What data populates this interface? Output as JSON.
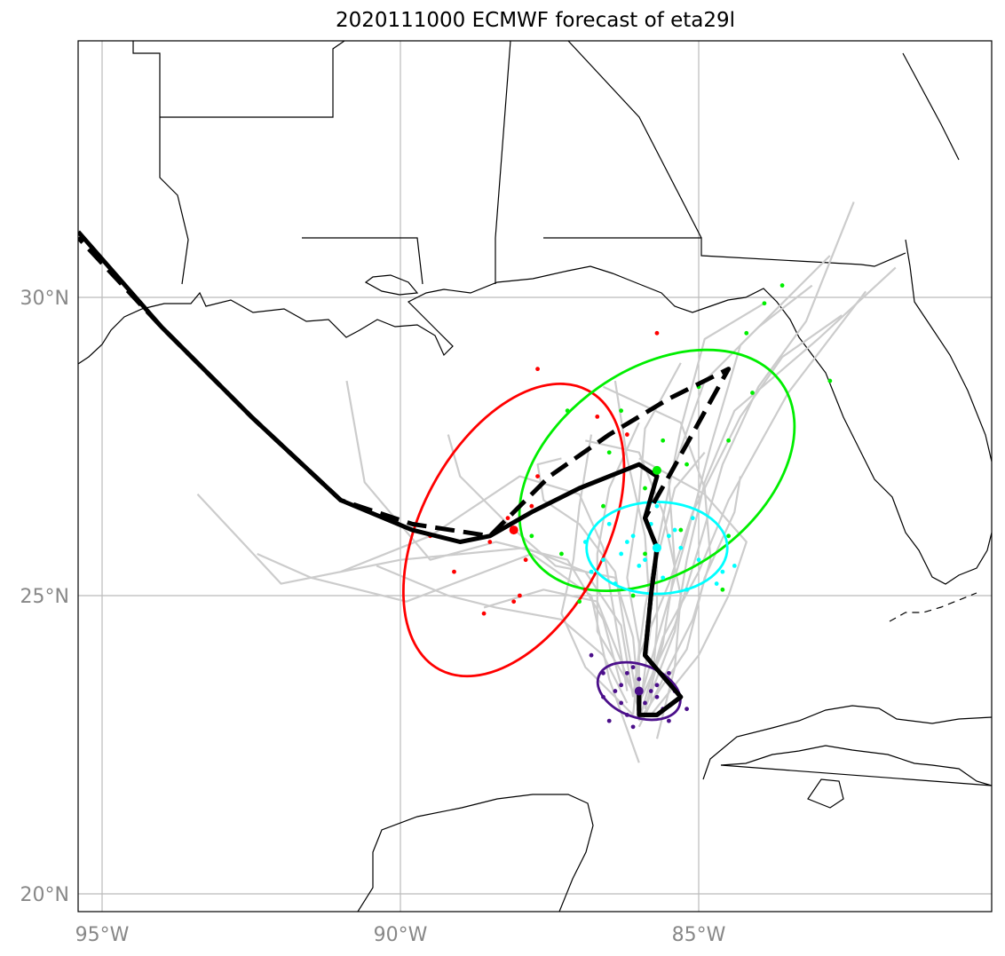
{
  "title": "2020111000 ECMWF forecast of eta29l",
  "axes": {
    "lon_ticks": [
      {
        "value": -95,
        "label": "95°W"
      },
      {
        "value": -90,
        "label": "90°W"
      },
      {
        "value": -85,
        "label": "85°W"
      }
    ],
    "lat_ticks": [
      {
        "value": 30,
        "label": "30°N"
      },
      {
        "value": 25,
        "label": "25°N"
      },
      {
        "value": 20,
        "label": "20°N"
      }
    ],
    "grid": true,
    "extent": {
      "lon_min": -95.4,
      "lon_max": -80.1,
      "lat_min": 19.7,
      "lat_max": 34.3
    }
  },
  "colors": {
    "coast": "#000000",
    "grid": "#bbbbbb",
    "ensemble": "#cccccc",
    "mean_track": "#000000",
    "ellipse_day1": "#4b0f8a",
    "ellipse_day2": "#00ffff",
    "ellipse_day3": "#00ee00",
    "ellipse_day4": "#ff0000"
  },
  "tracks": {
    "ensemble_mean": [
      [
        -86.0,
        23.4
      ],
      [
        -86.0,
        23.0
      ],
      [
        -85.7,
        23.0
      ],
      [
        -85.3,
        23.3
      ],
      [
        -85.9,
        24.0
      ],
      [
        -85.8,
        25.0
      ],
      [
        -85.7,
        25.8
      ],
      [
        -85.9,
        26.3
      ],
      [
        -85.7,
        27.0
      ],
      [
        -86.0,
        27.2
      ],
      [
        -87.0,
        26.8
      ],
      [
        -87.8,
        26.4
      ],
      [
        -88.5,
        26.0
      ],
      [
        -89.0,
        25.9
      ],
      [
        -89.8,
        26.1
      ],
      [
        -91.0,
        26.6
      ],
      [
        -92.5,
        28.0
      ],
      [
        -94.0,
        29.5
      ],
      [
        -95.4,
        31.1
      ]
    ],
    "deterministic": [
      [
        -86.0,
        23.4
      ],
      [
        -86.0,
        23.0
      ],
      [
        -85.7,
        23.0
      ],
      [
        -85.3,
        23.3
      ],
      [
        -85.9,
        24.0
      ],
      [
        -85.8,
        25.0
      ],
      [
        -85.7,
        25.8
      ],
      [
        -85.9,
        26.3
      ],
      [
        -85.5,
        27.0
      ],
      [
        -85.0,
        27.9
      ],
      [
        -84.5,
        28.8
      ],
      [
        -85.5,
        28.3
      ],
      [
        -86.5,
        27.7
      ],
      [
        -87.5,
        27.0
      ],
      [
        -88.5,
        26.0
      ],
      [
        -89.8,
        26.2
      ],
      [
        -91.0,
        26.6
      ],
      [
        -92.5,
        28.0
      ],
      [
        -94.0,
        29.5
      ],
      [
        -95.4,
        31.0
      ]
    ],
    "ensemble_members": [
      [
        [
          -86.0,
          23.2
        ],
        [
          -85.4,
          24.5
        ],
        [
          -85.0,
          25.8
        ],
        [
          -84.6,
          27.2
        ],
        [
          -84.0,
          28.5
        ],
        [
          -83.2,
          29.6
        ],
        [
          -82.4,
          31.6
        ]
      ],
      [
        [
          -86.0,
          23.2
        ],
        [
          -85.6,
          24.6
        ],
        [
          -85.2,
          26.0
        ],
        [
          -84.8,
          27.5
        ],
        [
          -84.3,
          29.2
        ],
        [
          -83.3,
          30.2
        ],
        [
          -82.8,
          30.7
        ]
      ],
      [
        [
          -86.1,
          23.3
        ],
        [
          -85.9,
          24.8
        ],
        [
          -85.6,
          26.3
        ],
        [
          -85.3,
          27.8
        ],
        [
          -84.9,
          29.3
        ],
        [
          -83.9,
          29.9
        ]
      ],
      [
        [
          -86.0,
          23.0
        ],
        [
          -85.8,
          24.5
        ],
        [
          -85.9,
          26.0
        ],
        [
          -86.2,
          27.3
        ],
        [
          -86.4,
          28.6
        ]
      ],
      [
        [
          -86.2,
          23.4
        ],
        [
          -86.4,
          24.6
        ],
        [
          -86.6,
          25.8
        ],
        [
          -87.0,
          26.7
        ],
        [
          -88.0,
          27.0
        ],
        [
          -89.5,
          26.0
        ],
        [
          -91.0,
          25.4
        ]
      ],
      [
        [
          -86.3,
          23.5
        ],
        [
          -86.6,
          24.6
        ],
        [
          -87.2,
          25.6
        ],
        [
          -88.4,
          25.9
        ],
        [
          -89.5,
          25.6
        ],
        [
          -90.6,
          26.9
        ],
        [
          -90.9,
          28.6
        ]
      ],
      [
        [
          -86.1,
          23.3
        ],
        [
          -86.3,
          24.5
        ],
        [
          -86.9,
          25.4
        ],
        [
          -87.9,
          25.8
        ],
        [
          -90.0,
          25.6
        ],
        [
          -92.0,
          25.2
        ],
        [
          -93.4,
          26.7
        ]
      ],
      [
        [
          -85.9,
          23.1
        ],
        [
          -85.4,
          24.4
        ],
        [
          -85.2,
          25.6
        ],
        [
          -84.9,
          26.9
        ],
        [
          -84.4,
          28.1
        ],
        [
          -83.0,
          29.3
        ],
        [
          -81.7,
          30.5
        ]
      ],
      [
        [
          -86.0,
          22.8
        ],
        [
          -85.6,
          23.6
        ],
        [
          -85.1,
          24.6
        ],
        [
          -84.8,
          25.6
        ],
        [
          -84.9,
          26.8
        ],
        [
          -85.3,
          27.9
        ],
        [
          -86.6,
          28.5
        ]
      ],
      [
        [
          -86.1,
          23.0
        ],
        [
          -86.0,
          24.0
        ],
        [
          -85.5,
          25.2
        ],
        [
          -85.1,
          26.4
        ],
        [
          -84.3,
          28.0
        ],
        [
          -83.6,
          29.0
        ],
        [
          -82.6,
          29.7
        ]
      ],
      [
        [
          -86.0,
          23.1
        ],
        [
          -86.2,
          24.2
        ],
        [
          -86.4,
          25.4
        ],
        [
          -87.0,
          26.2
        ],
        [
          -87.6,
          26.6
        ],
        [
          -87.7,
          27.2
        ],
        [
          -87.3,
          27.3
        ]
      ],
      [
        [
          -85.7,
          22.6
        ],
        [
          -85.4,
          23.8
        ],
        [
          -85.3,
          25.0
        ],
        [
          -85.6,
          26.4
        ],
        [
          -86.0,
          27.4
        ],
        [
          -86.9,
          27.6
        ]
      ],
      [
        [
          -86.0,
          22.2
        ],
        [
          -86.5,
          23.6
        ],
        [
          -86.8,
          25.0
        ],
        [
          -87.8,
          25.7
        ],
        [
          -89.9,
          24.9
        ],
        [
          -91.5,
          25.3
        ],
        [
          -92.4,
          25.7
        ]
      ],
      [
        [
          -86.0,
          22.9
        ],
        [
          -85.2,
          24.1
        ],
        [
          -84.9,
          25.3
        ],
        [
          -84.4,
          26.4
        ],
        [
          -84.3,
          27.0
        ]
      ],
      [
        [
          -86.2,
          23.2
        ],
        [
          -86.6,
          24.0
        ],
        [
          -87.3,
          24.6
        ],
        [
          -88.4,
          24.8
        ],
        [
          -89.2,
          25.0
        ],
        [
          -90.4,
          25.5
        ]
      ],
      [
        [
          -85.9,
          23.1
        ],
        [
          -85.6,
          24.2
        ],
        [
          -85.4,
          25.5
        ],
        [
          -85.5,
          26.9
        ],
        [
          -84.9,
          28.6
        ],
        [
          -84.0,
          29.5
        ],
        [
          -83.1,
          30.2
        ]
      ],
      [
        [
          -85.8,
          23.0
        ],
        [
          -85.0,
          24.0
        ],
        [
          -84.5,
          25.0
        ],
        [
          -84.2,
          25.9
        ],
        [
          -84.9,
          26.7
        ],
        [
          -86.0,
          27.3
        ]
      ],
      [
        [
          -86.1,
          23.0
        ],
        [
          -86.9,
          23.8
        ],
        [
          -87.3,
          24.7
        ],
        [
          -87.1,
          25.6
        ],
        [
          -87.0,
          26.5
        ],
        [
          -86.8,
          27.7
        ]
      ],
      [
        [
          -86.0,
          23.1
        ],
        [
          -86.3,
          23.9
        ],
        [
          -86.7,
          24.9
        ],
        [
          -87.6,
          25.1
        ],
        [
          -88.6,
          24.8
        ]
      ],
      [
        [
          -86.0,
          23.3
        ],
        [
          -86.0,
          24.2
        ],
        [
          -86.2,
          25.3
        ],
        [
          -86.0,
          26.6
        ],
        [
          -85.9,
          27.8
        ],
        [
          -85.3,
          28.9
        ]
      ],
      [
        [
          -85.8,
          23.2
        ],
        [
          -85.7,
          24.5
        ],
        [
          -85.7,
          25.6
        ],
        [
          -85.4,
          26.8
        ],
        [
          -84.9,
          27.4
        ]
      ],
      [
        [
          -86.0,
          23.2
        ],
        [
          -86.1,
          24.3
        ],
        [
          -86.4,
          25.3
        ],
        [
          -87.4,
          25.5
        ],
        [
          -88.2,
          26.2
        ],
        [
          -89.0,
          27.0
        ],
        [
          -89.2,
          27.7
        ]
      ],
      [
        [
          -86.1,
          23.4
        ],
        [
          -86.7,
          24.4
        ],
        [
          -86.7,
          25.7
        ],
        [
          -86.5,
          26.8
        ],
        [
          -86.0,
          27.9
        ]
      ],
      [
        [
          -86.0,
          22.9
        ],
        [
          -85.6,
          24.3
        ],
        [
          -85.0,
          25.4
        ],
        [
          -84.5,
          26.6
        ],
        [
          -83.5,
          28.4
        ],
        [
          -82.2,
          30.1
        ]
      ]
    ]
  },
  "positions": {
    "day1": [
      [
        -86.6,
        23.7
      ],
      [
        -86.1,
        23.8
      ],
      [
        -85.7,
        23.5
      ],
      [
        -86.3,
        23.2
      ],
      [
        -85.6,
        23.1
      ],
      [
        -86.2,
        23.0
      ],
      [
        -86.5,
        22.9
      ],
      [
        -85.4,
        23.4
      ],
      [
        -85.9,
        23.2
      ],
      [
        -86.3,
        23.5
      ],
      [
        -85.5,
        23.7
      ],
      [
        -86.4,
        23.4
      ],
      [
        -85.2,
        23.1
      ],
      [
        -86.1,
        22.8
      ],
      [
        -85.8,
        23.4
      ],
      [
        -86.6,
        23.3
      ],
      [
        -85.5,
        22.9
      ],
      [
        -86.0,
        23.6
      ],
      [
        -86.8,
        24.0
      ],
      [
        -85.9,
        23.0
      ],
      [
        -86.2,
        23.7
      ],
      [
        -85.7,
        23.3
      ]
    ],
    "day2": [
      [
        -85.9,
        25.6
      ],
      [
        -86.2,
        25.9
      ],
      [
        -85.4,
        26.1
      ],
      [
        -86.8,
        25.4
      ],
      [
        -85.7,
        26.5
      ],
      [
        -86.1,
        26.0
      ],
      [
        -85.3,
        25.8
      ],
      [
        -86.4,
        25.2
      ],
      [
        -85.0,
        25.6
      ],
      [
        -84.6,
        25.4
      ],
      [
        -85.6,
        25.3
      ],
      [
        -86.5,
        26.2
      ],
      [
        -85.2,
        25.1
      ],
      [
        -86.0,
        25.5
      ],
      [
        -84.4,
        25.5
      ],
      [
        -85.8,
        26.2
      ],
      [
        -86.3,
        25.7
      ],
      [
        -85.5,
        26.0
      ],
      [
        -84.7,
        25.2
      ],
      [
        -86.9,
        25.9
      ],
      [
        -85.1,
        26.3
      ],
      [
        -86.6,
        25.6
      ]
    ],
    "day3": [
      [
        -85.0,
        28.5
      ],
      [
        -85.6,
        27.6
      ],
      [
        -86.3,
        28.1
      ],
      [
        -85.9,
        26.8
      ],
      [
        -87.2,
        28.1
      ],
      [
        -86.5,
        27.4
      ],
      [
        -85.2,
        27.2
      ],
      [
        -86.6,
        26.5
      ],
      [
        -87.3,
        25.7
      ],
      [
        -84.5,
        26.0
      ],
      [
        -84.1,
        28.4
      ],
      [
        -83.9,
        29.9
      ],
      [
        -84.5,
        27.6
      ],
      [
        -85.9,
        25.7
      ],
      [
        -87.0,
        24.9
      ],
      [
        -86.1,
        25.0
      ],
      [
        -85.3,
        26.1
      ],
      [
        -87.8,
        26.0
      ],
      [
        -84.6,
        25.1
      ],
      [
        -84.2,
        29.4
      ],
      [
        -82.8,
        28.6
      ],
      [
        -83.6,
        30.2
      ]
    ],
    "day4": [
      [
        -87.7,
        28.8
      ],
      [
        -86.7,
        28.0
      ],
      [
        -87.7,
        27.0
      ],
      [
        -88.2,
        26.3
      ],
      [
        -88.5,
        25.9
      ],
      [
        -89.5,
        26.0
      ],
      [
        -87.9,
        25.6
      ],
      [
        -88.0,
        25.0
      ],
      [
        -89.1,
        25.4
      ],
      [
        -88.6,
        24.7
      ],
      [
        -86.9,
        25.1
      ],
      [
        -87.8,
        26.5
      ],
      [
        -85.7,
        29.4
      ],
      [
        -86.2,
        27.7
      ],
      [
        -88.1,
        24.9
      ]
    ]
  },
  "ellipses": {
    "day1": {
      "center": [
        -86.0,
        23.4
      ],
      "rx_deg": 0.72,
      "ry_deg": 0.44,
      "angle_deg": 20
    },
    "day2": {
      "center": [
        -85.7,
        25.8
      ],
      "rx_deg": 1.18,
      "ry_deg": 0.77,
      "angle_deg": 0
    },
    "day3": {
      "center": [
        -85.7,
        27.1
      ],
      "rx_deg": 2.55,
      "ry_deg": 1.7,
      "angle_deg": -35
    },
    "day4": {
      "center": [
        -88.1,
        26.1
      ],
      "rx_deg": 2.65,
      "ry_deg": 1.55,
      "angle_deg": -62
    }
  },
  "legend": null
}
